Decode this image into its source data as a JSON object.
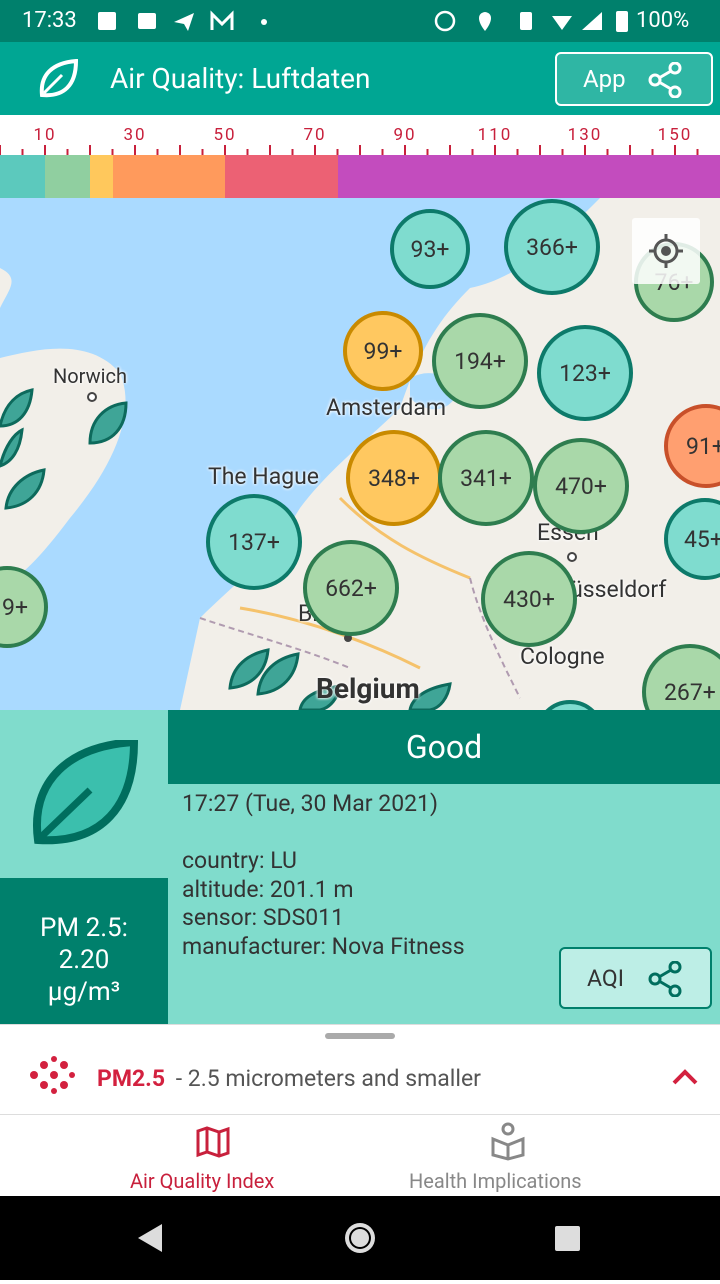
{
  "status_bar": {
    "time": "17:33",
    "battery": "100%"
  },
  "app_bar": {
    "title": "Air Quality: Luftdaten",
    "share_button": "App"
  },
  "scale": {
    "labels": [
      "10",
      "30",
      "50",
      "70",
      "90",
      "110",
      "130",
      "150"
    ]
  },
  "map": {
    "places": [
      "Norwich",
      "Amsterdam",
      "The Hague",
      "Essen",
      "Düsseldorf",
      "Brussels",
      "Cologne",
      "Belgium"
    ],
    "clusters": [
      "93+",
      "366+",
      "76+",
      "99+",
      "194+",
      "123+",
      "91+",
      "348+",
      "341+",
      "470+",
      "45+",
      "137+",
      "662+",
      "430+",
      "267+",
      "9+"
    ]
  },
  "station": {
    "status": "Good",
    "time": "17:27 (Tue, 30 Mar 2021)",
    "details": [
      "country: LU",
      "altitude: 201.1 m",
      "sensor: SDS011",
      "manufacturer: Nova Fitness"
    ],
    "pm_label": "PM 2.5:",
    "pm_value": "2.20",
    "pm_unit": "µg/m³",
    "share_button": "AQI"
  },
  "pollutant": {
    "name": "PM2.5",
    "description": " - 2.5 micrometers and smaller"
  },
  "nav": {
    "tabs": [
      "Air Quality Index",
      "Health Implications"
    ]
  }
}
